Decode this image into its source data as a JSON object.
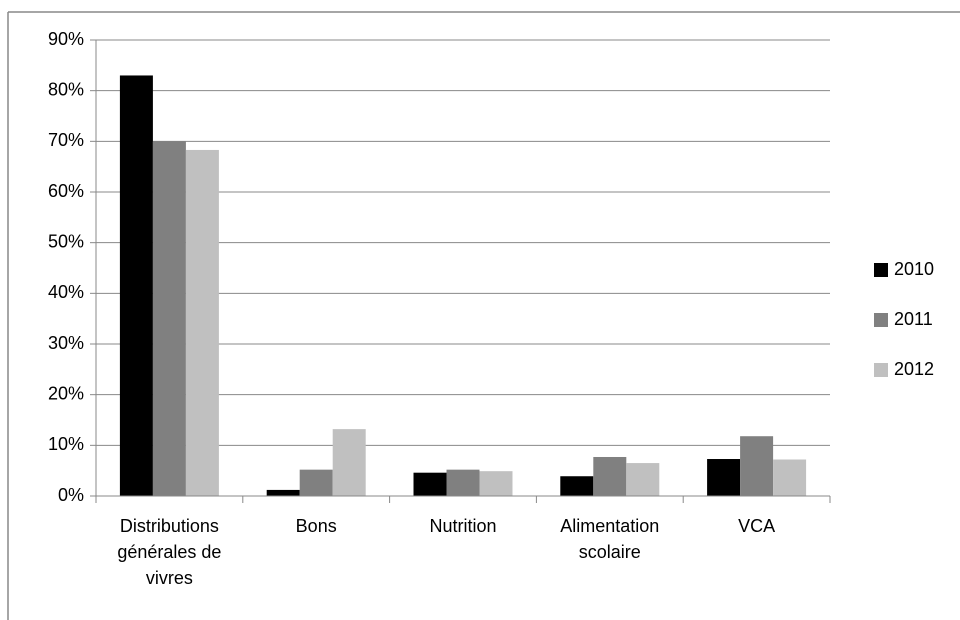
{
  "chart_data": {
    "type": "bar",
    "categories": [
      "Distributions générales de vivres",
      "Bons",
      "Nutrition",
      "Alimentation scolaire",
      "VCA"
    ],
    "series": [
      {
        "name": "2010",
        "color": "#000000",
        "values": [
          83,
          1.2,
          4.6,
          3.9,
          7.3
        ]
      },
      {
        "name": "2011",
        "color": "#808080",
        "values": [
          70,
          5.2,
          5.2,
          7.7,
          11.8
        ]
      },
      {
        "name": "2012",
        "color": "#c0c0c0",
        "values": [
          68.3,
          13.2,
          4.9,
          6.5,
          7.2
        ]
      }
    ],
    "ylim": [
      0,
      90
    ],
    "yticks": [
      {
        "value": 0,
        "label": "0%"
      },
      {
        "value": 10,
        "label": "10%"
      },
      {
        "value": 20,
        "label": "20%"
      },
      {
        "value": 30,
        "label": "30%"
      },
      {
        "value": 40,
        "label": "40%"
      },
      {
        "value": 50,
        "label": "50%"
      },
      {
        "value": 60,
        "label": "60%"
      },
      {
        "value": 70,
        "label": "70%"
      },
      {
        "value": 80,
        "label": "80%"
      },
      {
        "value": 90,
        "label": "90%"
      }
    ],
    "grid": true,
    "legend": "right"
  }
}
